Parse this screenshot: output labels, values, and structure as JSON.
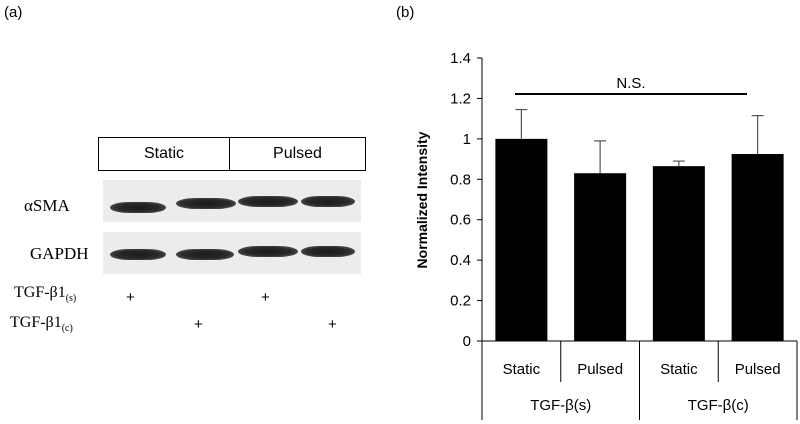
{
  "panel_a": {
    "label": "(a)",
    "conditions": [
      "Static",
      "Pulsed"
    ],
    "rows": [
      "αSMA",
      "GAPDH"
    ],
    "treatments": [
      {
        "label": "TGF-β1",
        "sub": "(s)",
        "lanes": [
          "+",
          "",
          "+",
          ""
        ]
      },
      {
        "label": "TGF-β1",
        "sub": "(c)",
        "lanes": [
          "",
          "+",
          "",
          "+"
        ]
      }
    ]
  },
  "panel_b": {
    "label": "(b)",
    "significance": "N.S."
  },
  "chart_data": {
    "type": "bar",
    "ylabel": "Normalized Intensity",
    "xlabel": "",
    "ylim": [
      0,
      1.4
    ],
    "yticks": [
      "0",
      "0.2",
      "0.4",
      "0.6",
      "0.8",
      "1",
      "1.2",
      "1.4"
    ],
    "categories": [
      "Static",
      "Pulsed",
      "Static",
      "Pulsed"
    ],
    "groups": [
      "TGF-β(s)",
      "TGF-β(c)"
    ],
    "values": [
      1.0,
      0.83,
      0.865,
      0.925
    ],
    "errors": [
      0.145,
      0.16,
      0.025,
      0.19
    ],
    "bar_color": "#000000",
    "legend": "none",
    "grid": false
  }
}
